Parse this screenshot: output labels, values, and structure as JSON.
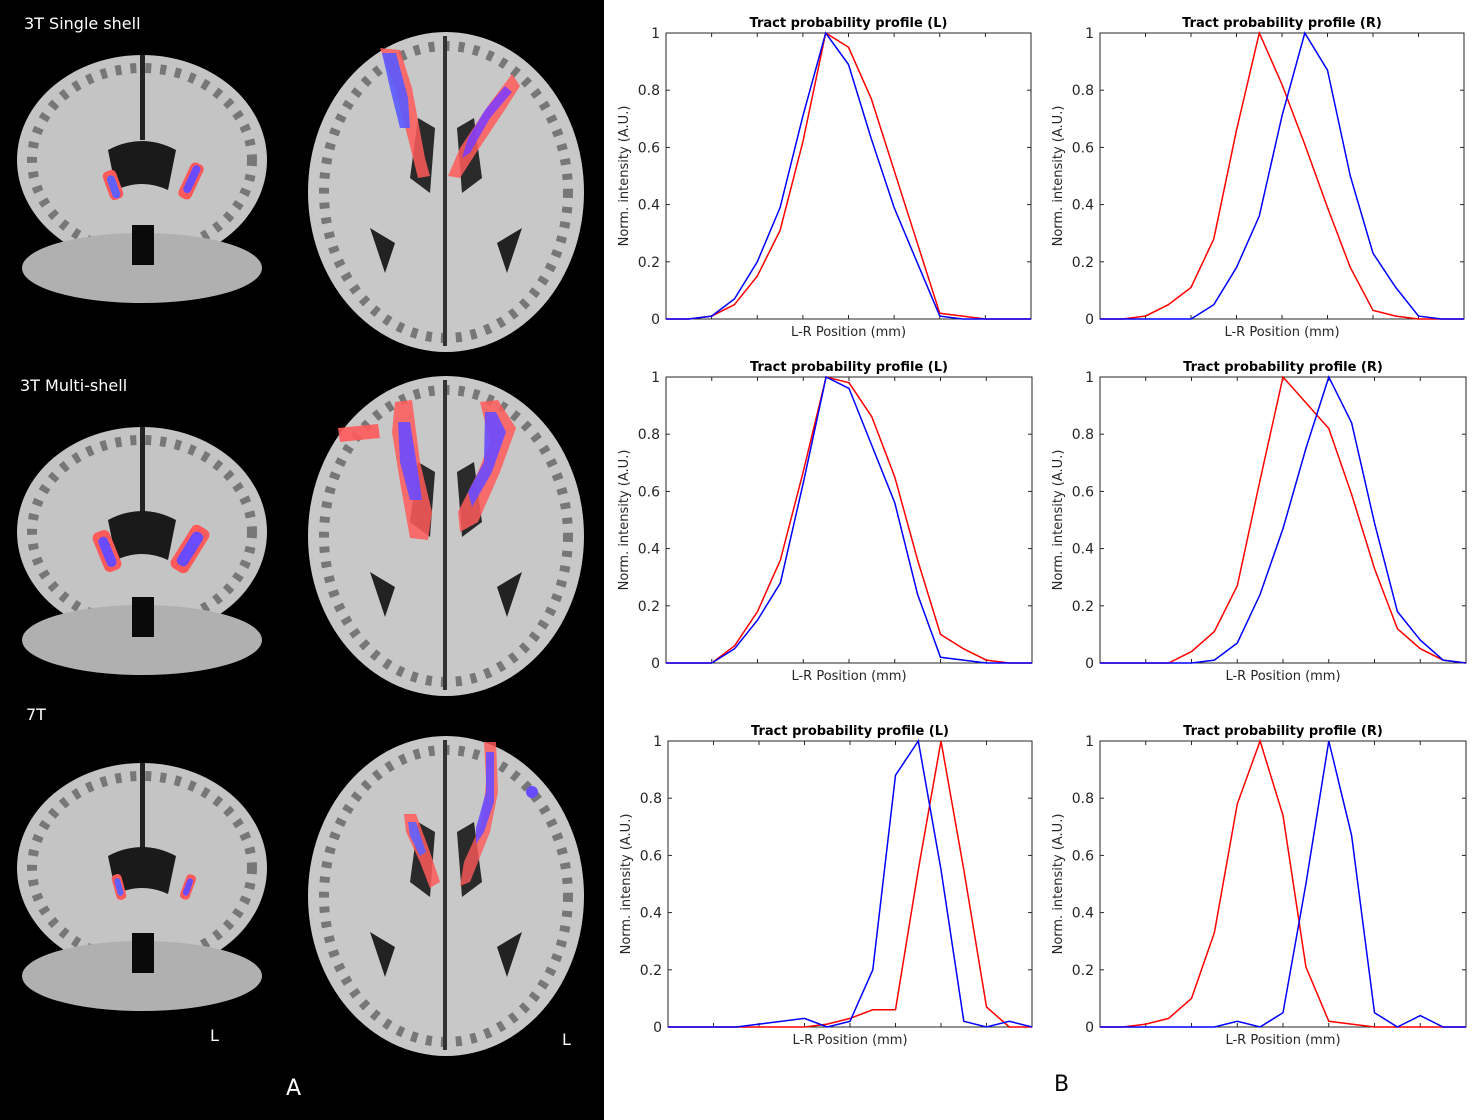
{
  "panel_a": {
    "letter": "A",
    "rows": [
      {
        "label": "3T Single shell"
      },
      {
        "label": "3T Multi-shell"
      },
      {
        "label": "7T"
      }
    ],
    "orientation_coronal": "L",
    "orientation_axial": "L",
    "overlay_colors": {
      "red": "#ff5050",
      "blue": "#5050ff",
      "tissue": "#bdbdbd",
      "background": "#000000"
    }
  },
  "panel_b": {
    "letter": "B"
  },
  "chart_data": [
    {
      "type": "line",
      "title": "Tract probability profile (L)",
      "xlabel": "L-R Position (mm)",
      "ylabel": "Norm. intensity (A.U.)",
      "ylim": [
        0,
        1
      ],
      "xlim": [
        1,
        17
      ],
      "yticks": [
        "0",
        "0.2",
        "0.4",
        "0.6",
        "0.8",
        "1"
      ],
      "series": [
        {
          "color": "#ff0000",
          "x": [
            1,
            2,
            3,
            4,
            5,
            6,
            7,
            8,
            9,
            10,
            11,
            12,
            13,
            14,
            15,
            16,
            17
          ],
          "y": [
            0.0,
            0.0,
            0.01,
            0.05,
            0.15,
            0.31,
            0.62,
            1.0,
            0.95,
            0.77,
            0.52,
            0.27,
            0.02,
            0.01,
            0.0,
            0.0,
            0.0
          ]
        },
        {
          "color": "#0000ff",
          "x": [
            1,
            2,
            3,
            4,
            5,
            6,
            7,
            8,
            9,
            10,
            11,
            12,
            13,
            14,
            15,
            16,
            17
          ],
          "y": [
            0.0,
            0.0,
            0.01,
            0.07,
            0.2,
            0.39,
            0.71,
            1.0,
            0.89,
            0.63,
            0.39,
            0.2,
            0.01,
            0.0,
            0.0,
            0.0,
            0.0
          ]
        }
      ]
    },
    {
      "type": "line",
      "title": "Tract probability profile (R)",
      "xlabel": "L-R Position (mm)",
      "ylabel": "Norm. intensity (A.U.)",
      "ylim": [
        0,
        1
      ],
      "xlim": [
        1,
        17
      ],
      "yticks": [
        "0",
        "0.2",
        "0.4",
        "0.6",
        "0.8",
        "1"
      ],
      "series": [
        {
          "color": "#ff0000",
          "x": [
            1,
            2,
            3,
            4,
            5,
            6,
            7,
            8,
            9,
            10,
            11,
            12,
            13,
            14,
            15,
            16,
            17
          ],
          "y": [
            0.0,
            0.0,
            0.01,
            0.05,
            0.11,
            0.28,
            0.66,
            1.0,
            0.82,
            0.61,
            0.39,
            0.18,
            0.03,
            0.01,
            0.0,
            0.0,
            0.0
          ]
        },
        {
          "color": "#0000ff",
          "x": [
            1,
            2,
            3,
            4,
            5,
            6,
            7,
            8,
            9,
            10,
            11,
            12,
            13,
            14,
            15,
            16,
            17
          ],
          "y": [
            0.0,
            0.0,
            0.0,
            0.0,
            0.0,
            0.05,
            0.18,
            0.36,
            0.71,
            1.0,
            0.87,
            0.5,
            0.23,
            0.11,
            0.01,
            0.0,
            0.0
          ]
        }
      ]
    },
    {
      "type": "line",
      "title": "Tract probability profile (L)",
      "xlabel": "L-R Position (mm)",
      "ylabel": "Norm. intensity (A.U.)",
      "ylim": [
        0,
        1
      ],
      "xlim": [
        1,
        17
      ],
      "yticks": [
        "0",
        "0.2",
        "0.4",
        "0.6",
        "0.8",
        "1"
      ],
      "series": [
        {
          "color": "#ff0000",
          "x": [
            1,
            2,
            3,
            4,
            5,
            6,
            7,
            8,
            9,
            10,
            11,
            12,
            13,
            14,
            15,
            16,
            17
          ],
          "y": [
            0.0,
            0.0,
            0.0,
            0.06,
            0.18,
            0.36,
            0.67,
            1.0,
            0.98,
            0.86,
            0.65,
            0.36,
            0.1,
            0.05,
            0.01,
            0.0,
            0.0
          ]
        },
        {
          "color": "#0000ff",
          "x": [
            1,
            2,
            3,
            4,
            5,
            6,
            7,
            8,
            9,
            10,
            11,
            12,
            13,
            14,
            15,
            16,
            17
          ],
          "y": [
            0.0,
            0.0,
            0.0,
            0.05,
            0.15,
            0.28,
            0.63,
            1.0,
            0.96,
            0.76,
            0.56,
            0.24,
            0.02,
            0.01,
            0.0,
            0.0,
            0.0
          ]
        }
      ]
    },
    {
      "type": "line",
      "title": "Tract probability profile (R)",
      "xlabel": "L-R Position (mm)",
      "ylabel": "Norm. intensity (A.U.)",
      "ylim": [
        0,
        1
      ],
      "xlim": [
        1,
        17
      ],
      "yticks": [
        "0",
        "0.2",
        "0.4",
        "0.6",
        "0.8",
        "1"
      ],
      "series": [
        {
          "color": "#ff0000",
          "x": [
            1,
            2,
            3,
            4,
            5,
            6,
            7,
            8,
            9,
            10,
            11,
            12,
            13,
            14,
            15,
            16,
            17
          ],
          "y": [
            0.0,
            0.0,
            0.0,
            0.0,
            0.04,
            0.11,
            0.27,
            0.64,
            1.0,
            0.91,
            0.82,
            0.59,
            0.33,
            0.12,
            0.05,
            0.01,
            0.0
          ]
        },
        {
          "color": "#0000ff",
          "x": [
            1,
            2,
            3,
            4,
            5,
            6,
            7,
            8,
            9,
            10,
            11,
            12,
            13,
            14,
            15,
            16,
            17
          ],
          "y": [
            0.0,
            0.0,
            0.0,
            0.0,
            0.0,
            0.01,
            0.07,
            0.24,
            0.47,
            0.75,
            1.0,
            0.84,
            0.49,
            0.18,
            0.08,
            0.01,
            0.0
          ]
        }
      ]
    },
    {
      "type": "line",
      "title": "Tract probability profile (L)",
      "xlabel": "L-R Position (mm)",
      "ylabel": "Norm. intensity (A.U.)",
      "ylim": [
        0,
        1
      ],
      "xlim": [
        1,
        17
      ],
      "yticks": [
        "0",
        "0.2",
        "0.4",
        "0.6",
        "0.8",
        "1"
      ],
      "series": [
        {
          "color": "#ff0000",
          "x": [
            1,
            2,
            3,
            4,
            5,
            6,
            7,
            8,
            9,
            10,
            11,
            12,
            13,
            14,
            15,
            16,
            17
          ],
          "y": [
            0.0,
            0.0,
            0.0,
            0.0,
            0.0,
            0.0,
            0.0,
            0.01,
            0.03,
            0.06,
            0.06,
            0.55,
            1.0,
            0.55,
            0.07,
            0.0,
            0.0
          ]
        },
        {
          "color": "#0000ff",
          "x": [
            1,
            2,
            3,
            4,
            5,
            6,
            7,
            8,
            9,
            10,
            11,
            12,
            13,
            14,
            15,
            16,
            17
          ],
          "y": [
            0.0,
            0.0,
            0.0,
            0.0,
            0.01,
            0.02,
            0.03,
            0.0,
            0.02,
            0.2,
            0.88,
            1.0,
            0.55,
            0.02,
            0.0,
            0.02,
            0.0
          ]
        }
      ]
    },
    {
      "type": "line",
      "title": "Tract probability profile (R)",
      "xlabel": "L-R Position (mm)",
      "ylabel": "Norm. intensity (A.U.)",
      "ylim": [
        0,
        1
      ],
      "xlim": [
        1,
        17
      ],
      "yticks": [
        "0",
        "0.2",
        "0.4",
        "0.6",
        "0.8",
        "1"
      ],
      "series": [
        {
          "color": "#ff0000",
          "x": [
            1,
            2,
            3,
            4,
            5,
            6,
            7,
            8,
            9,
            10,
            11,
            12,
            13,
            14,
            15,
            16,
            17
          ],
          "y": [
            0.0,
            0.0,
            0.01,
            0.03,
            0.1,
            0.33,
            0.78,
            1.0,
            0.74,
            0.21,
            0.02,
            0.01,
            0.0,
            0.0,
            0.0,
            0.0,
            0.0
          ]
        },
        {
          "color": "#0000ff",
          "x": [
            1,
            2,
            3,
            4,
            5,
            6,
            7,
            8,
            9,
            10,
            11,
            12,
            13,
            14,
            15,
            16,
            17
          ],
          "y": [
            0.0,
            0.0,
            0.0,
            0.0,
            0.0,
            0.0,
            0.02,
            0.0,
            0.05,
            0.5,
            1.0,
            0.67,
            0.05,
            0.0,
            0.04,
            0.0,
            0.0
          ]
        }
      ]
    }
  ]
}
